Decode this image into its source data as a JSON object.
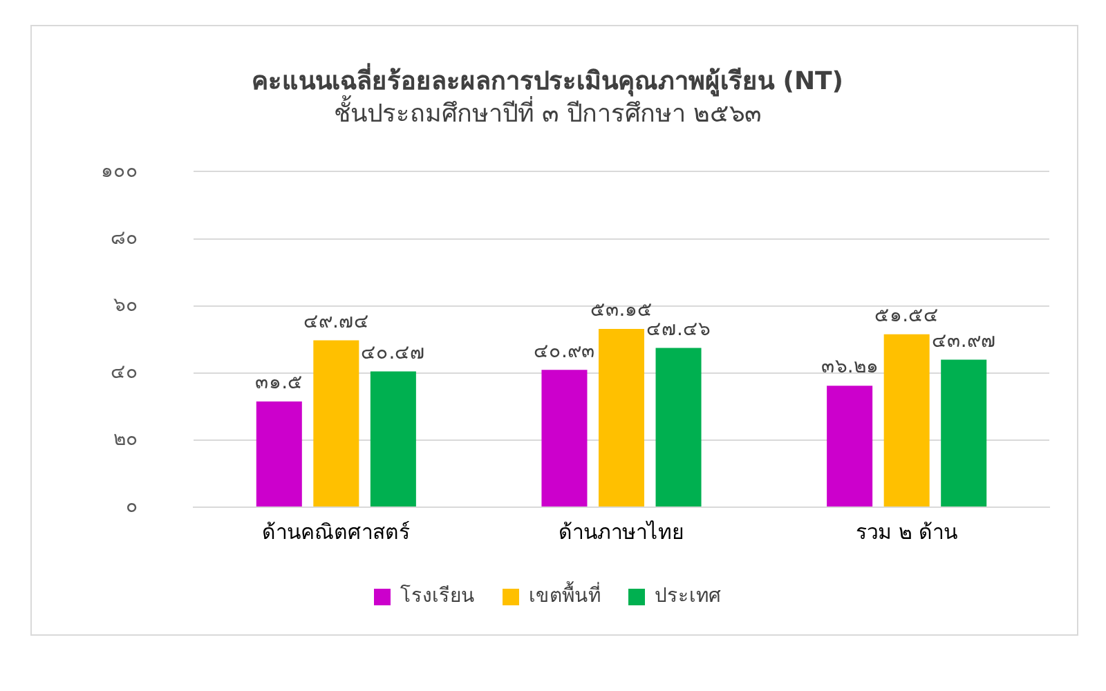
{
  "chart_data": {
    "type": "bar",
    "title": "คะแนนเฉลี่ยร้อยละผลการประเมินคุณภาพผู้เรียน (NT)",
    "subtitle": "ชั้นประถมศึกษาปีที่ ๓ ปีการศึกษา ๒๕๖๓",
    "categories": [
      "ด้านคณิตศาสตร์",
      "ด้านภาษาไทย",
      "รวม ๒ ด้าน"
    ],
    "series": [
      {
        "name": "โรงเรียน",
        "color": "#cc00cc",
        "values": [
          31.5,
          40.93,
          36.21
        ],
        "value_labels": [
          "๓๑.๕",
          "๔๐.๙๓",
          "๓๖.๒๑"
        ]
      },
      {
        "name": "เขตพื้นที่",
        "color": "#ffc000",
        "values": [
          49.74,
          53.15,
          51.54
        ],
        "value_labels": [
          "๔๙.๗๔",
          "๕๓.๑๕",
          "๕๑.๕๔"
        ]
      },
      {
        "name": "ประเทศ",
        "color": "#00b050",
        "values": [
          40.47,
          47.46,
          43.97
        ],
        "value_labels": [
          "๔๐.๔๗",
          "๔๗.๔๖",
          "๔๓.๙๗"
        ]
      }
    ],
    "ylim": [
      0,
      100
    ],
    "yticks": [
      {
        "value": 0,
        "label": "๐"
      },
      {
        "value": 20,
        "label": "๒๐"
      },
      {
        "value": 40,
        "label": "๔๐"
      },
      {
        "value": 60,
        "label": "๖๐"
      },
      {
        "value": 80,
        "label": "๘๐"
      },
      {
        "value": 100,
        "label": "๑๐๐"
      }
    ],
    "grid": "y",
    "legend": "bottom"
  }
}
